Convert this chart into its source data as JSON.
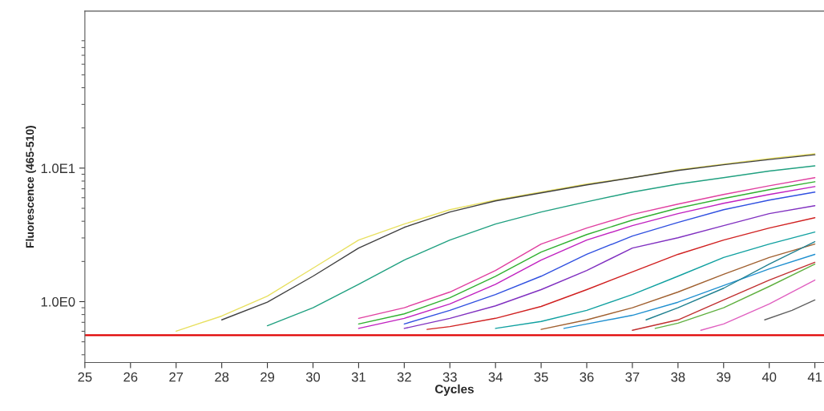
{
  "chart_data": {
    "type": "line",
    "xlabel": "Cycles",
    "ylabel": "Fluorescence (465-510)",
    "log": "y",
    "xlim": [
      25,
      41.2
    ],
    "xticks": [
      25,
      26,
      27,
      28,
      29,
      30,
      31,
      32,
      33,
      34,
      35,
      36,
      37,
      38,
      39,
      40,
      41
    ],
    "ylim": [
      0.35,
      150
    ],
    "yticks": [
      {
        "value": 1,
        "label": "1.0E0"
      },
      {
        "value": 10,
        "label": "1.0E1"
      }
    ],
    "grid": false,
    "legend": false,
    "marker": "none",
    "line_style": "solid",
    "ref_lines": [
      {
        "axis": "y",
        "value": 0.56,
        "color": "#e00000"
      }
    ],
    "series": [
      {
        "color": "#e8e060",
        "x": [
          27,
          28,
          29,
          30,
          31,
          32,
          33,
          34,
          35,
          36,
          37,
          38,
          39,
          40,
          41
        ],
        "values": [
          0.6,
          0.78,
          1.1,
          1.78,
          2.89,
          3.81,
          4.88,
          5.76,
          6.61,
          7.59,
          8.48,
          9.73,
          10.7,
          11.8,
          12.8
        ]
      },
      {
        "color": "#404040",
        "x": [
          28,
          29,
          30,
          31,
          32,
          33,
          34,
          35,
          36,
          37,
          38,
          39,
          40,
          41
        ],
        "values": [
          0.73,
          0.99,
          1.55,
          2.52,
          3.6,
          4.69,
          5.68,
          6.52,
          7.49,
          8.48,
          9.6,
          10.6,
          11.6,
          12.6
        ]
      },
      {
        "color": "#20a080",
        "x": [
          29,
          30,
          31,
          32,
          33,
          34,
          35,
          36,
          37,
          38,
          39,
          40,
          41
        ],
        "values": [
          0.66,
          0.9,
          1.35,
          2.05,
          2.89,
          3.81,
          4.69,
          5.6,
          6.61,
          7.59,
          8.48,
          9.5,
          10.4
        ]
      },
      {
        "color": "#e040a0",
        "x": [
          31,
          32,
          33,
          34,
          35,
          36,
          37,
          38,
          39,
          40,
          41
        ],
        "values": [
          0.75,
          0.9,
          1.18,
          1.71,
          2.7,
          3.56,
          4.5,
          5.38,
          6.35,
          7.38,
          8.48
        ]
      },
      {
        "color": "#30b030",
        "x": [
          31,
          32,
          33,
          34,
          35,
          36,
          37,
          38,
          39,
          40,
          41
        ],
        "values": [
          0.68,
          0.81,
          1.07,
          1.55,
          2.35,
          3.18,
          4.08,
          5.02,
          5.92,
          6.89,
          7.91
        ]
      },
      {
        "color": "#c020c0",
        "x": [
          31,
          32,
          33,
          34,
          35,
          36,
          37,
          38,
          39,
          40,
          41
        ],
        "values": [
          0.63,
          0.75,
          0.96,
          1.35,
          2.05,
          2.89,
          3.71,
          4.56,
          5.45,
          6.35,
          7.28
        ]
      },
      {
        "color": "#3050e0",
        "x": [
          32,
          33,
          34,
          35,
          36,
          37,
          38,
          39,
          40,
          41
        ],
        "values": [
          0.68,
          0.86,
          1.13,
          1.55,
          2.26,
          3.1,
          3.92,
          4.88,
          5.76,
          6.61
        ]
      },
      {
        "color": "#8030c0",
        "x": [
          32,
          33,
          34,
          35,
          36,
          37,
          38,
          39,
          40,
          41
        ],
        "values": [
          0.63,
          0.75,
          0.93,
          1.23,
          1.71,
          2.52,
          3.01,
          3.71,
          4.56,
          5.23
        ]
      },
      {
        "color": "#d02020",
        "x": [
          32.5,
          33,
          34,
          35,
          36,
          37,
          38,
          39,
          40,
          41
        ],
        "values": [
          0.62,
          0.65,
          0.75,
          0.92,
          1.23,
          1.67,
          2.26,
          2.89,
          3.56,
          4.25
        ]
      },
      {
        "color": "#10a0a0",
        "x": [
          34,
          35,
          36,
          37,
          38,
          39,
          40,
          41
        ],
        "values": [
          0.63,
          0.71,
          0.86,
          1.13,
          1.55,
          2.14,
          2.7,
          3.32
        ]
      },
      {
        "color": "#a06030",
        "x": [
          35,
          36,
          37,
          38,
          39,
          40,
          41
        ],
        "values": [
          0.62,
          0.73,
          0.9,
          1.18,
          1.6,
          2.14,
          2.7
        ]
      },
      {
        "color": "#2090d0",
        "x": [
          35.5,
          36,
          37,
          38,
          39,
          40,
          41
        ],
        "values": [
          0.63,
          0.68,
          0.79,
          0.99,
          1.32,
          1.76,
          2.26
        ]
      },
      {
        "color": "#208090",
        "x": [
          37.3,
          38,
          39,
          40,
          41
        ],
        "values": [
          0.73,
          0.9,
          1.26,
          1.91,
          2.81
        ]
      },
      {
        "color": "#c03030",
        "x": [
          37,
          38,
          39,
          40,
          41
        ],
        "values": [
          0.61,
          0.73,
          1.03,
          1.45,
          1.97
        ]
      },
      {
        "color": "#60b040",
        "x": [
          37.5,
          38,
          39,
          40,
          41
        ],
        "values": [
          0.63,
          0.69,
          0.9,
          1.3,
          1.91
        ]
      },
      {
        "color": "#e060c0",
        "x": [
          38.5,
          39,
          40,
          41
        ],
        "values": [
          0.61,
          0.68,
          0.96,
          1.45
        ]
      },
      {
        "color": "#606060",
        "x": [
          39.9,
          40.5,
          41
        ],
        "values": [
          0.73,
          0.86,
          1.03
        ]
      }
    ]
  }
}
